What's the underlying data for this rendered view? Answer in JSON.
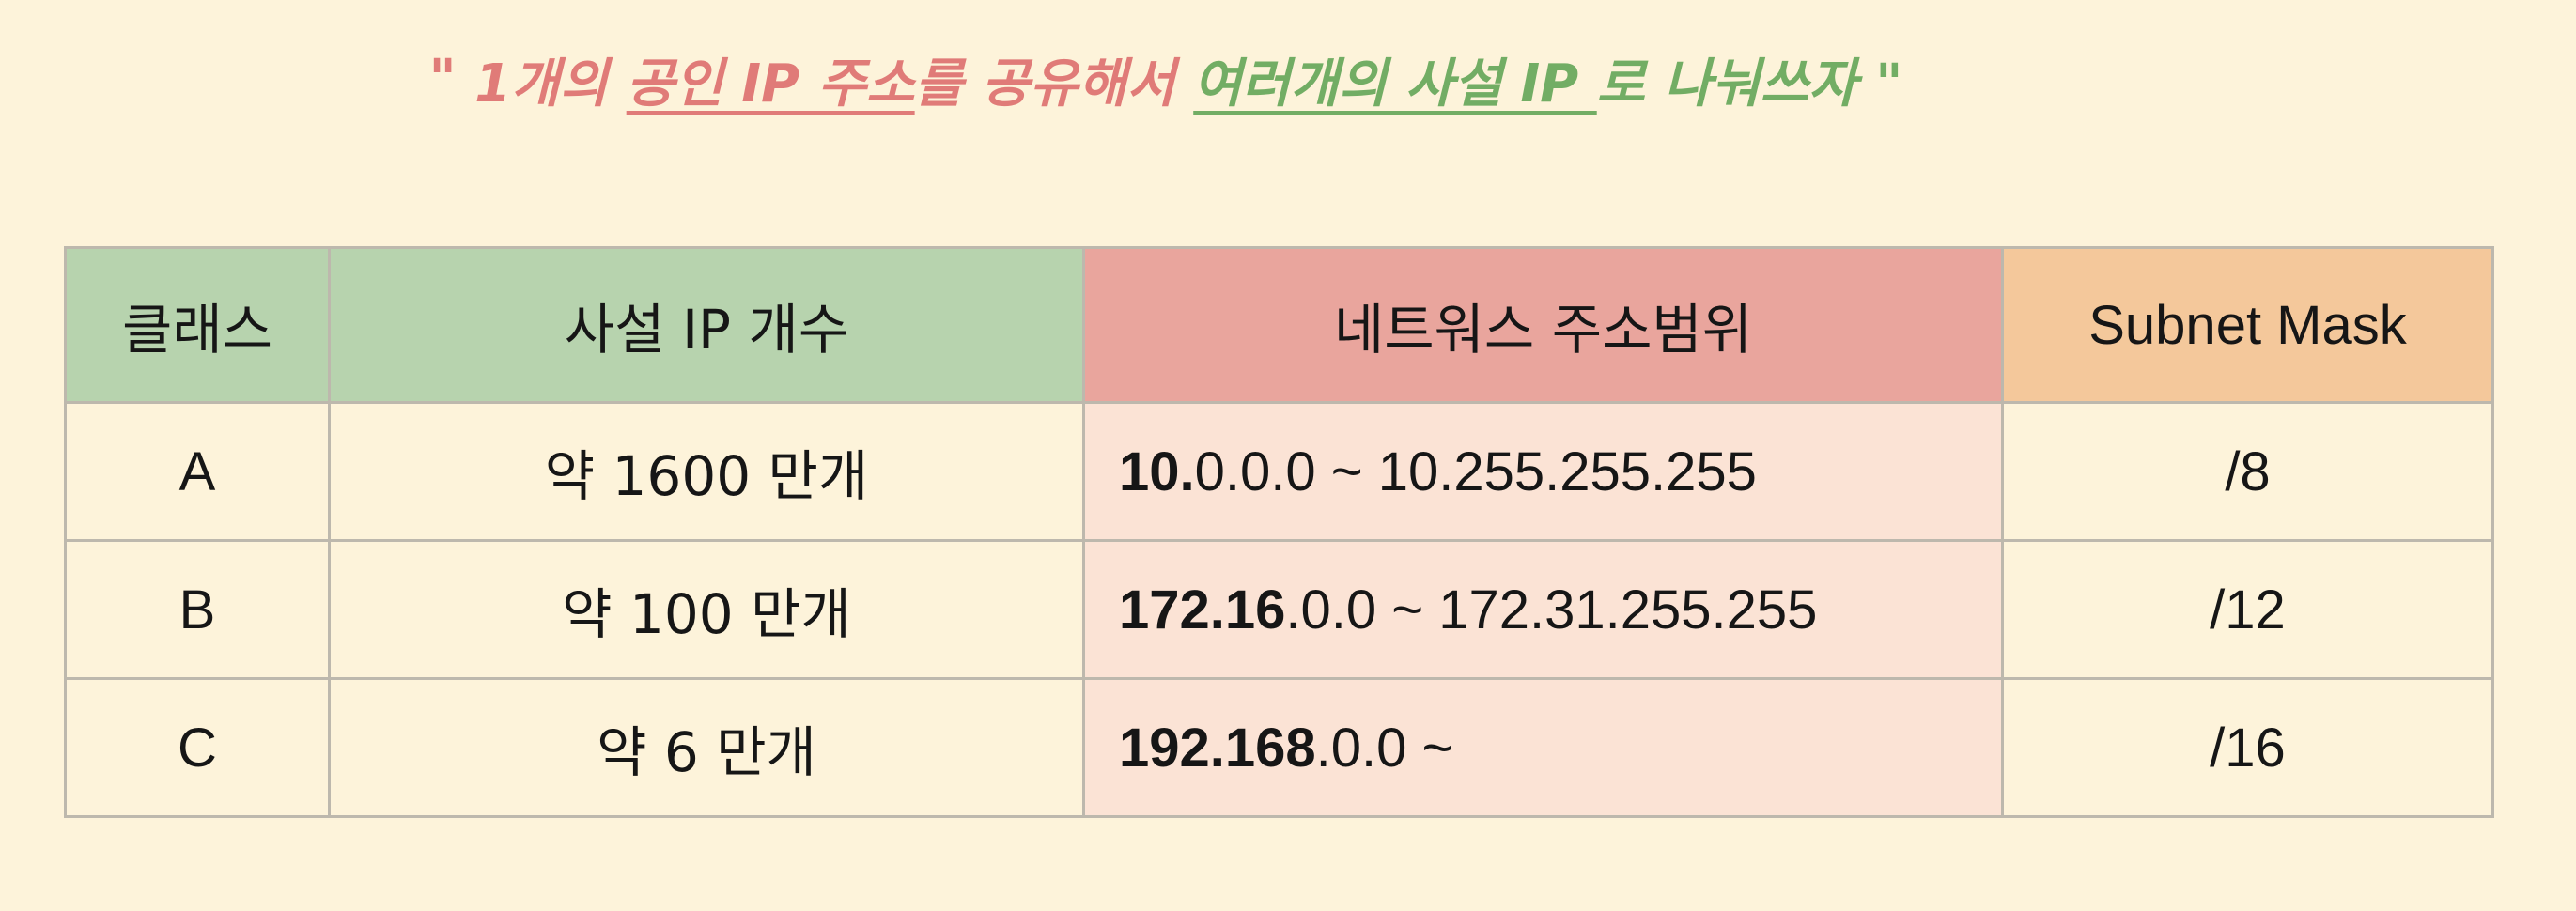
{
  "headline": {
    "open_quote": "\" ",
    "part1": "1개의 ",
    "public_ip": "공인 IP 주소",
    "part2": "를 공유해서 ",
    "private_ip": "여러개의 사설 IP ",
    "part3": "로 나눠쓰자 \""
  },
  "table": {
    "headers": {
      "class": "클래스",
      "count": "사설 IP 개수",
      "range": "네트워스 주소범위",
      "mask": "Subnet Mask"
    },
    "rows": [
      {
        "class": "A",
        "count": "약 1600 만개",
        "range_bold": "10.",
        "range_rest": "0.0.0 ~ 10.255.255.255",
        "mask": "/8"
      },
      {
        "class": "B",
        "count": "약 100 만개",
        "range_bold": "172.16",
        "range_rest": ".0.0 ~ 172.31.255.255",
        "mask": "/12"
      },
      {
        "class": "C",
        "count": "약 6 만개",
        "range_bold": "192.168",
        "range_rest": ".0.0 ~",
        "mask": "/16"
      }
    ],
    "colors": {
      "background": "#fdf3da",
      "header_green": "#b7d3ae",
      "header_red": "#e9a59d",
      "header_orange": "#f4c89b",
      "range_cell": "#fbe3d5",
      "headline_red": "#e07b78",
      "headline_green": "#72ad64"
    }
  }
}
